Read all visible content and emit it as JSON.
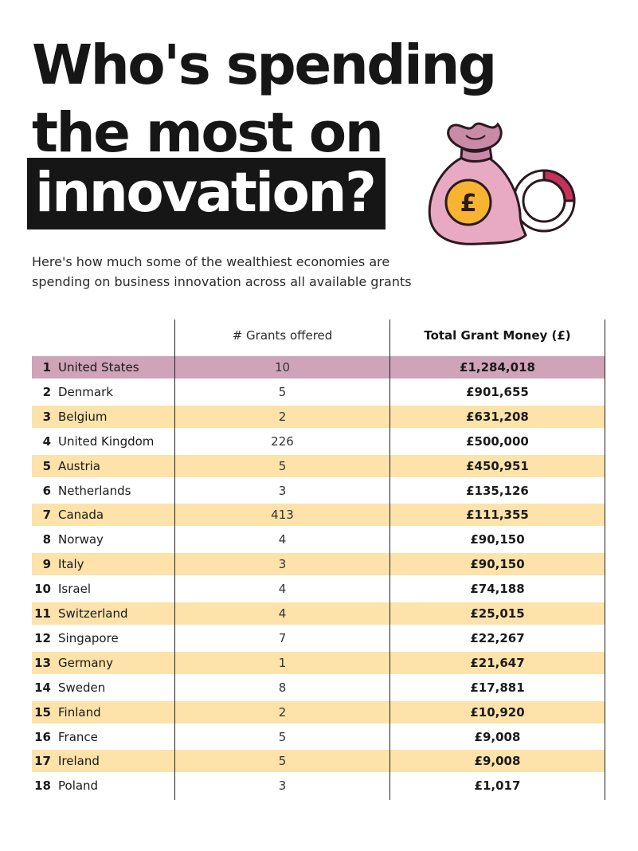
{
  "headline": {
    "line1": "Who's spending",
    "line2": "the most on",
    "line3": "innovation?"
  },
  "subtitle": {
    "line1": "Here's how much some of the wealthiest economies are",
    "line2": "spending on business innovation across all available grants"
  },
  "illustration": {
    "icon": "money-bag-pound-icon",
    "symbol": "£",
    "colors": {
      "bag": "#e8a9c3",
      "coin": "#f6b431",
      "gauge": "#c5315a",
      "outline": "#2a1a1f"
    }
  },
  "colors": {
    "highlight_first": "#cfa3b8",
    "highlight_alt": "#fde2aa",
    "headline_bg": "#161616"
  },
  "chart_data": {
    "type": "table",
    "columns": [
      "",
      "# Grants offered",
      "Total Grant Money (£)"
    ],
    "rows": [
      {
        "rank": "1",
        "country": "United States",
        "grants": "10",
        "money": "£1,284,018"
      },
      {
        "rank": "2",
        "country": "Denmark",
        "grants": "5",
        "money": "£901,655"
      },
      {
        "rank": "3",
        "country": "Belgium",
        "grants": "2",
        "money": "£631,208"
      },
      {
        "rank": "4",
        "country": "United Kingdom",
        "grants": "226",
        "money": "£500,000"
      },
      {
        "rank": "5",
        "country": "Austria",
        "grants": "5",
        "money": "£450,951"
      },
      {
        "rank": "6",
        "country": "Netherlands",
        "grants": "3",
        "money": "£135,126"
      },
      {
        "rank": "7",
        "country": "Canada",
        "grants": "413",
        "money": "£111,355"
      },
      {
        "rank": "8",
        "country": "Norway",
        "grants": "4",
        "money": "£90,150"
      },
      {
        "rank": "9",
        "country": "Italy",
        "grants": "3",
        "money": "£90,150"
      },
      {
        "rank": "10",
        "country": "Israel",
        "grants": "4",
        "money": "£74,188"
      },
      {
        "rank": "11",
        "country": "Switzerland",
        "grants": "4",
        "money": "£25,015"
      },
      {
        "rank": "12",
        "country": "Singapore",
        "grants": "7",
        "money": "£22,267"
      },
      {
        "rank": "13",
        "country": "Germany",
        "grants": "1",
        "money": "£21,647"
      },
      {
        "rank": "14",
        "country": "Sweden",
        "grants": "8",
        "money": "£17,881"
      },
      {
        "rank": "15",
        "country": "Finland",
        "grants": "2",
        "money": "£10,920"
      },
      {
        "rank": "16",
        "country": "France",
        "grants": "5",
        "money": "£9,008"
      },
      {
        "rank": "17",
        "country": "Ireland",
        "grants": "5",
        "money": "£9,008"
      },
      {
        "rank": "18",
        "country": "Poland",
        "grants": "3",
        "money": "£1,017"
      }
    ]
  }
}
